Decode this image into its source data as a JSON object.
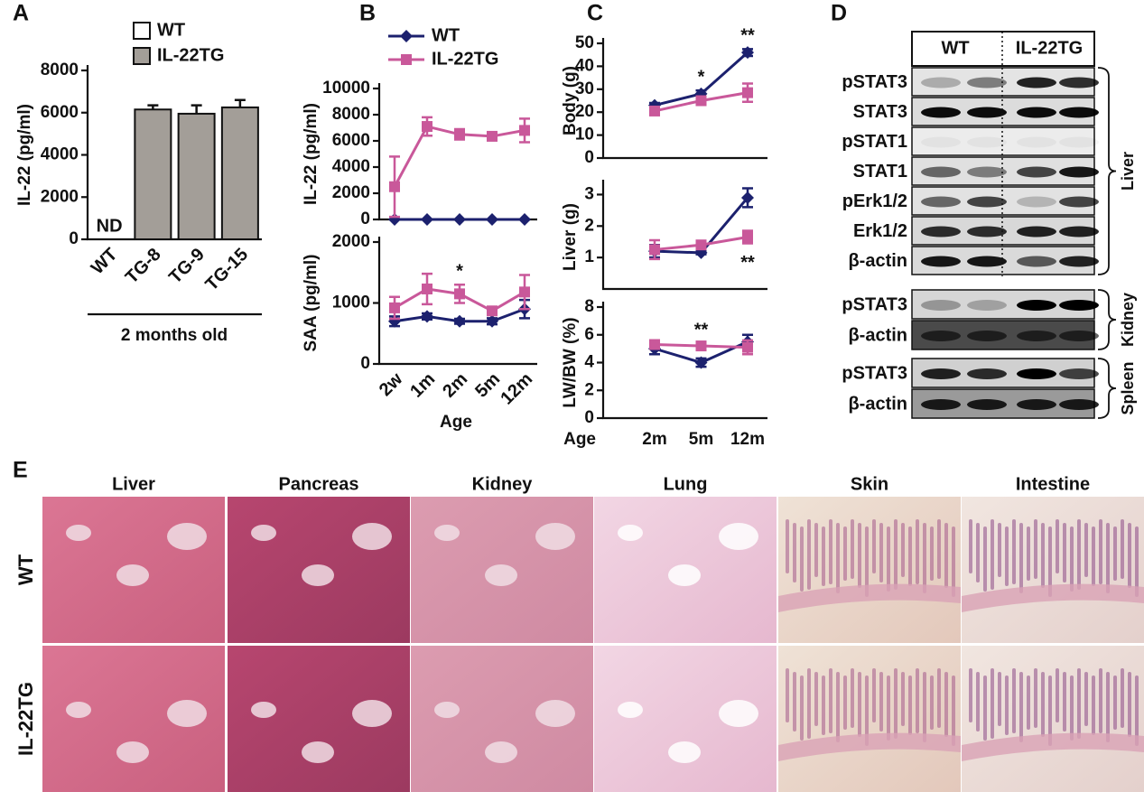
{
  "chart_data": [
    {
      "type": "bar",
      "panel": "A",
      "ylabel": "IL-22 (pg/ml)",
      "xlabel": "2 months old",
      "categories": [
        "WT",
        "TG-8",
        "TG-9",
        "TG-15"
      ],
      "series": [
        {
          "name": "WT",
          "color": "#ffffff",
          "values": [
            null,
            null,
            null,
            null
          ]
        },
        {
          "name": "IL-22TG",
          "color": "#a39e98",
          "values": [
            null,
            6150,
            5950,
            6250
          ],
          "errors": [
            null,
            200,
            400,
            350
          ]
        }
      ],
      "annotations": [
        {
          "text": "ND",
          "category": 0
        }
      ],
      "ylim": [
        0,
        8000
      ],
      "yticks": [
        0,
        2000,
        4000,
        6000,
        8000
      ]
    },
    {
      "type": "line",
      "panel": "B",
      "ylabel": "IL-22 (pg/ml)",
      "series": [
        {
          "name": "WT",
          "color": "#1c216e",
          "marker": "diamond",
          "values": [
            0,
            0,
            0,
            0,
            0
          ],
          "errors": [
            0,
            0,
            0,
            0,
            0
          ]
        },
        {
          "name": "IL-22TG",
          "color": "#c9589a",
          "marker": "square",
          "values": [
            2500,
            7100,
            6500,
            6350,
            6800
          ],
          "errors": [
            2300,
            700,
            400,
            150,
            900
          ]
        }
      ],
      "ylim": [
        0,
        10000
      ],
      "yticks": [
        0,
        2000,
        4000,
        6000,
        8000,
        10000
      ]
    },
    {
      "type": "line",
      "ylabel": "SAA (pg/ml)",
      "xlabel": "Age",
      "categories": [
        "2w",
        "1m",
        "2m",
        "5m",
        "12m"
      ],
      "series": [
        {
          "color": "#1c216e",
          "marker": "diamond",
          "values": [
            700,
            780,
            700,
            700,
            900
          ],
          "errors": [
            80,
            50,
            40,
            50,
            150
          ]
        },
        {
          "color": "#c9589a",
          "marker": "square",
          "values": [
            920,
            1230,
            1150,
            870,
            1180
          ],
          "errors": [
            180,
            250,
            150,
            60,
            280
          ]
        }
      ],
      "annotations": [
        {
          "text": "*",
          "category": 2
        }
      ],
      "ylim": [
        0,
        2000
      ],
      "yticks": [
        0,
        1000,
        2000
      ]
    },
    {
      "type": "line",
      "panel": "C",
      "ylabel": "Body (g)",
      "series": [
        {
          "color": "#1c216e",
          "marker": "diamond",
          "values": [
            23,
            28,
            46
          ],
          "errors": [
            1,
            1.5,
            1.5
          ]
        },
        {
          "color": "#c9589a",
          "marker": "square",
          "values": [
            20.5,
            25,
            28.5
          ],
          "errors": [
            1,
            1,
            4
          ]
        }
      ],
      "annotations": [
        {
          "text": "*",
          "category": 1
        },
        {
          "text": "**",
          "category": 2
        }
      ],
      "ylim": [
        0,
        50
      ],
      "yticks": [
        0,
        10,
        20,
        30,
        40,
        50
      ]
    },
    {
      "type": "line",
      "ylabel": "Liver (g)",
      "series": [
        {
          "color": "#1c216e",
          "marker": "diamond",
          "values": [
            1.2,
            1.15,
            2.9
          ],
          "errors": [
            0.2,
            0.05,
            0.3
          ]
        },
        {
          "color": "#c9589a",
          "marker": "square",
          "values": [
            1.25,
            1.4,
            1.65
          ],
          "errors": [
            0.3,
            0.1,
            0.2
          ]
        }
      ],
      "annotations": [
        {
          "text": "**",
          "category": 2
        }
      ],
      "ylim": [
        0,
        3.3
      ],
      "yticks": [
        1,
        2,
        3
      ]
    },
    {
      "type": "line",
      "ylabel": "LW/BW (%)",
      "xlabel": "Age",
      "categories": [
        "2m",
        "5m",
        "12m"
      ],
      "series": [
        {
          "color": "#1c216e",
          "marker": "diamond",
          "values": [
            5,
            4,
            5.5
          ],
          "errors": [
            0.4,
            0.3,
            0.5
          ]
        },
        {
          "color": "#c9589a",
          "marker": "square",
          "values": [
            5.3,
            5.2,
            5.1
          ],
          "errors": [
            0.3,
            0.2,
            0.5
          ]
        }
      ],
      "annotations": [
        {
          "text": "**",
          "category": 1
        }
      ],
      "ylim": [
        0,
        8
      ],
      "yticks": [
        0,
        2,
        4,
        6,
        8
      ]
    }
  ],
  "blot": {
    "panel": "D",
    "groups": [
      "WT",
      "IL-22TG"
    ],
    "sections": [
      {
        "tissue": "Liver",
        "rows": [
          "pSTAT3",
          "STAT3",
          "pSTAT1",
          "STAT1",
          "pErk1/2",
          "Erk1/2",
          "β-actin"
        ]
      },
      {
        "tissue": "Kidney",
        "rows": [
          "pSTAT3",
          "β-actin"
        ]
      },
      {
        "tissue": "Spleen",
        "rows": [
          "pSTAT3",
          "β-actin"
        ]
      }
    ]
  },
  "histology": {
    "panel": "E",
    "columns": [
      "Liver",
      "Pancreas",
      "Kidney",
      "Lung",
      "Skin",
      "Intestine"
    ],
    "rows": [
      "WT",
      "IL-22TG"
    ]
  }
}
